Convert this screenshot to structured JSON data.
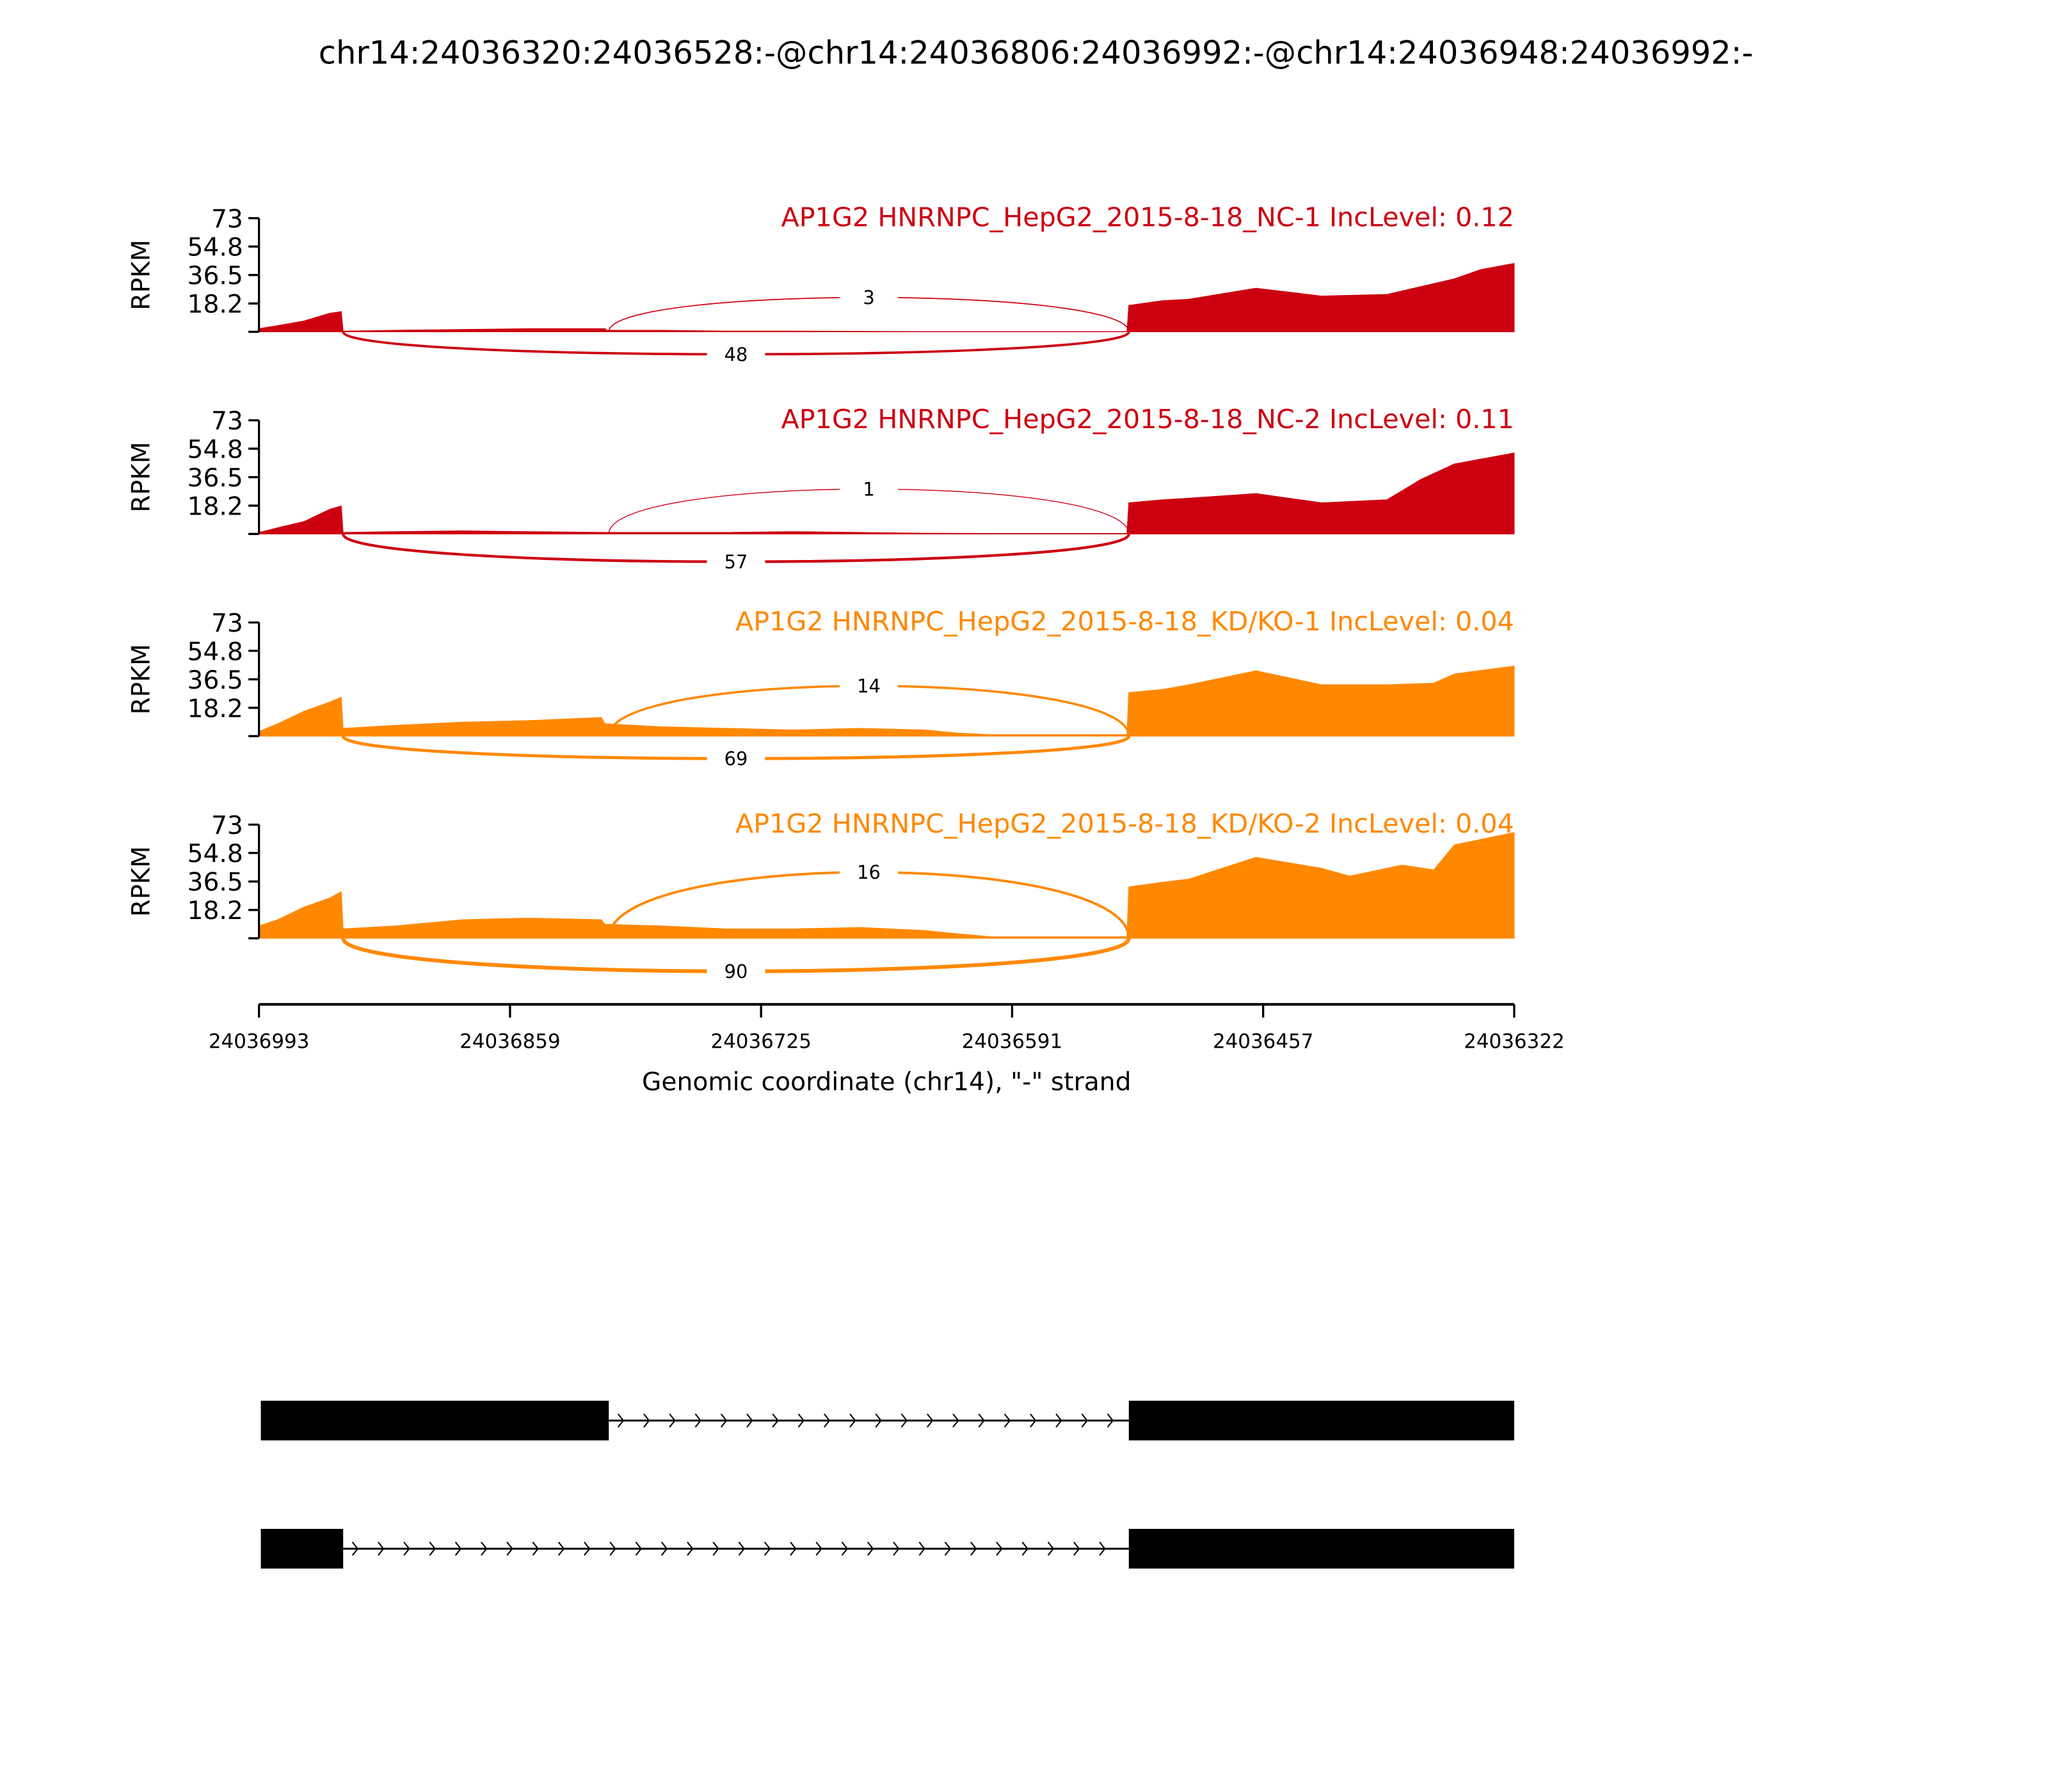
{
  "chart_data": {
    "type": "area",
    "title": "chr14:24036320:24036528:-@chr14:24036806:24036992:-@chr14:24036948:24036992:-",
    "xlabel": "Genomic coordinate (chr14), \"-\" strand",
    "ylabel": "RPKM",
    "xlim": [
      24036993,
      24036322
    ],
    "ylim": [
      0,
      73
    ],
    "x_ticks": [
      "24036993",
      "24036859",
      "24036725",
      "24036591",
      "24036457",
      "24036322"
    ],
    "y_ticks": [
      "73",
      "54.8",
      "36.5",
      "18.2"
    ],
    "junctions": {
      "inclusion": [
        24036806,
        24036528
      ],
      "skipping": [
        24036948,
        24036528
      ]
    },
    "samples": [
      {
        "name": "AP1G2 HNRNPC_HepG2_2015-8-18_NC-1 IncLevel: 0.12",
        "color": "#cc0011",
        "inclusion_count": "3",
        "skipping_count": "48",
        "coverage": [
          [
            24036993,
            2
          ],
          [
            24036983,
            4
          ],
          [
            24036969,
            7
          ],
          [
            24036955,
            12
          ],
          [
            24036949,
            13
          ],
          [
            24036948,
            0.5
          ],
          [
            24036920,
            1
          ],
          [
            24036884,
            1.5
          ],
          [
            24036849,
            2
          ],
          [
            24036808,
            2
          ],
          [
            24036807,
            1
          ],
          [
            24036778,
            1
          ],
          [
            24036743,
            0.5
          ],
          [
            24036708,
            0.5
          ],
          [
            24036672,
            0.3
          ],
          [
            24036637,
            0.2
          ],
          [
            24036602,
            0.2
          ],
          [
            24036566,
            0.2
          ],
          [
            24036529,
            0.2
          ],
          [
            24036528,
            17
          ],
          [
            24036510,
            20
          ],
          [
            24036496,
            21
          ],
          [
            24036460,
            28
          ],
          [
            24036425,
            23
          ],
          [
            24036390,
            24
          ],
          [
            24036354,
            34
          ],
          [
            24036340,
            40
          ],
          [
            24036322,
            44
          ]
        ]
      },
      {
        "name": "AP1G2 HNRNPC_HepG2_2015-8-18_NC-2 IncLevel: 0.11",
        "color": "#cc0011",
        "inclusion_count": "1",
        "skipping_count": "57",
        "coverage": [
          [
            24036993,
            1
          ],
          [
            24036983,
            4
          ],
          [
            24036969,
            8
          ],
          [
            24036955,
            16
          ],
          [
            24036949,
            18
          ],
          [
            24036948,
            1
          ],
          [
            24036920,
            1.5
          ],
          [
            24036884,
            2
          ],
          [
            24036849,
            1.5
          ],
          [
            24036808,
            1
          ],
          [
            24036778,
            1
          ],
          [
            24036743,
            1
          ],
          [
            24036708,
            1.5
          ],
          [
            24036672,
            1
          ],
          [
            24036637,
            0.5
          ],
          [
            24036602,
            0.3
          ],
          [
            24036566,
            0.3
          ],
          [
            24036529,
            0.3
          ],
          [
            24036528,
            20
          ],
          [
            24036510,
            22
          ],
          [
            24036496,
            23
          ],
          [
            24036460,
            26
          ],
          [
            24036425,
            20
          ],
          [
            24036390,
            22
          ],
          [
            24036372,
            35
          ],
          [
            24036354,
            45
          ],
          [
            24036322,
            52
          ]
        ]
      },
      {
        "name": "AP1G2 HNRNPC_HepG2_2015-8-18_KD/KO-1 IncLevel: 0.04",
        "color": "#ff8800",
        "inclusion_count": "14",
        "skipping_count": "69",
        "coverage": [
          [
            24036993,
            3
          ],
          [
            24036983,
            8
          ],
          [
            24036969,
            16
          ],
          [
            24036955,
            22
          ],
          [
            24036949,
            25
          ],
          [
            24036948,
            5
          ],
          [
            24036920,
            7
          ],
          [
            24036884,
            9
          ],
          [
            24036849,
            10
          ],
          [
            24036810,
            12
          ],
          [
            24036808,
            8
          ],
          [
            24036778,
            6
          ],
          [
            24036743,
            5
          ],
          [
            24036708,
            4
          ],
          [
            24036672,
            5
          ],
          [
            24036637,
            4
          ],
          [
            24036620,
            2
          ],
          [
            24036602,
            1
          ],
          [
            24036566,
            1
          ],
          [
            24036529,
            1
          ],
          [
            24036528,
            28
          ],
          [
            24036510,
            30
          ],
          [
            24036496,
            33
          ],
          [
            24036460,
            42
          ],
          [
            24036425,
            33
          ],
          [
            24036390,
            33
          ],
          [
            24036365,
            34
          ],
          [
            24036354,
            40
          ],
          [
            24036322,
            45
          ]
        ]
      },
      {
        "name": "AP1G2 HNRNPC_HepG2_2015-8-18_KD/KO-2 IncLevel: 0.04",
        "color": "#ff8800",
        "inclusion_count": "16",
        "skipping_count": "90",
        "coverage": [
          [
            24036993,
            8
          ],
          [
            24036983,
            12
          ],
          [
            24036969,
            20
          ],
          [
            24036955,
            26
          ],
          [
            24036949,
            30
          ],
          [
            24036948,
            6
          ],
          [
            24036920,
            8
          ],
          [
            24036884,
            12
          ],
          [
            24036849,
            13
          ],
          [
            24036810,
            12
          ],
          [
            24036808,
            9
          ],
          [
            24036778,
            8
          ],
          [
            24036743,
            6
          ],
          [
            24036708,
            6
          ],
          [
            24036672,
            7
          ],
          [
            24036637,
            5
          ],
          [
            24036620,
            3
          ],
          [
            24036602,
            1
          ],
          [
            24036566,
            1
          ],
          [
            24036529,
            1
          ],
          [
            24036528,
            33
          ],
          [
            24036510,
            36
          ],
          [
            24036496,
            38
          ],
          [
            24036460,
            52
          ],
          [
            24036425,
            45
          ],
          [
            24036410,
            40
          ],
          [
            24036382,
            47
          ],
          [
            24036365,
            44
          ],
          [
            24036354,
            60
          ],
          [
            24036322,
            68
          ]
        ]
      }
    ],
    "isoforms": [
      {
        "exons": [
          [
            24036806,
            24036992
          ],
          [
            24036320,
            24036528
          ]
        ]
      },
      {
        "exons": [
          [
            24036948,
            24036992
          ],
          [
            24036320,
            24036528
          ]
        ]
      }
    ]
  }
}
